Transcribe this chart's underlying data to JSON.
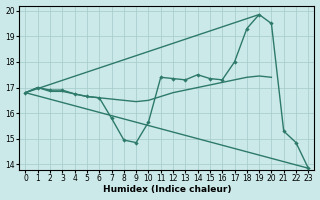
{
  "xlabel": "Humidex (Indice chaleur)",
  "xlim": [
    -0.5,
    23.5
  ],
  "ylim": [
    13.8,
    20.2
  ],
  "yticks": [
    14,
    15,
    16,
    17,
    18,
    19,
    20
  ],
  "xticks": [
    0,
    1,
    2,
    3,
    4,
    5,
    6,
    7,
    8,
    9,
    10,
    11,
    12,
    13,
    14,
    15,
    16,
    17,
    18,
    19,
    20,
    21,
    22,
    23
  ],
  "bg_color": "#cce9e9",
  "line_color": "#2d7a6a",
  "grid_color": "#aacece",
  "line1_x": [
    0,
    1,
    2,
    3,
    4,
    5,
    6,
    7,
    8,
    9,
    10,
    11,
    12,
    13,
    14,
    15,
    16,
    17,
    18,
    19,
    20,
    21,
    22,
    23
  ],
  "line1_y": [
    16.8,
    17.0,
    16.9,
    16.9,
    16.75,
    16.65,
    16.6,
    15.8,
    14.95,
    14.85,
    15.65,
    17.4,
    17.35,
    17.3,
    17.5,
    17.35,
    17.3,
    18.0,
    19.3,
    19.85,
    19.5,
    15.3,
    14.85,
    13.85
  ],
  "line2_x": [
    0,
    1,
    2,
    3,
    4,
    5,
    6,
    7,
    8,
    9,
    10,
    11,
    12,
    13,
    14,
    15,
    16,
    17,
    18,
    19,
    20
  ],
  "line2_y": [
    16.8,
    17.0,
    16.85,
    16.85,
    16.75,
    16.65,
    16.6,
    16.55,
    16.5,
    16.45,
    16.5,
    16.65,
    16.8,
    16.9,
    17.0,
    17.1,
    17.2,
    17.3,
    17.4,
    17.45,
    17.4
  ],
  "line3_x": [
    0,
    19
  ],
  "line3_y": [
    16.8,
    19.85
  ],
  "line4_x": [
    0,
    23
  ],
  "line4_y": [
    16.8,
    13.85
  ]
}
